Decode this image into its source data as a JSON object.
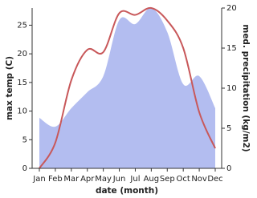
{
  "chart_data": {
    "type": "line-area",
    "xlabel": "date (month)",
    "ylabel": "max temp (C)",
    "y2label": "med. precipitation (kg/m2)",
    "categories": [
      "Jan",
      "Feb",
      "Mar",
      "Apr",
      "May",
      "Jun",
      "Jul",
      "Aug",
      "Sep",
      "Oct",
      "Nov",
      "Dec"
    ],
    "series": [
      {
        "name": "max temp",
        "kind": "line",
        "color": "#c8585a",
        "values": [
          0,
          4.5,
          15.4,
          20.7,
          20.3,
          27.1,
          26.8,
          28,
          25.8,
          21,
          9.8,
          3.5
        ]
      },
      {
        "name": "med. precipitation",
        "kind": "area",
        "axis": "y2",
        "color": "#b3bdf0",
        "values": [
          6.3,
          5.2,
          7.5,
          9.5,
          11.5,
          18.5,
          18,
          20,
          17,
          10.5,
          11.5,
          7.5
        ]
      }
    ],
    "ylim": [
      0,
      28
    ],
    "yticks": [
      0,
      5,
      10,
      15,
      20,
      25
    ],
    "y2lim": [
      0,
      20
    ],
    "y2ticks": [
      0,
      5,
      10,
      15,
      20
    ]
  }
}
